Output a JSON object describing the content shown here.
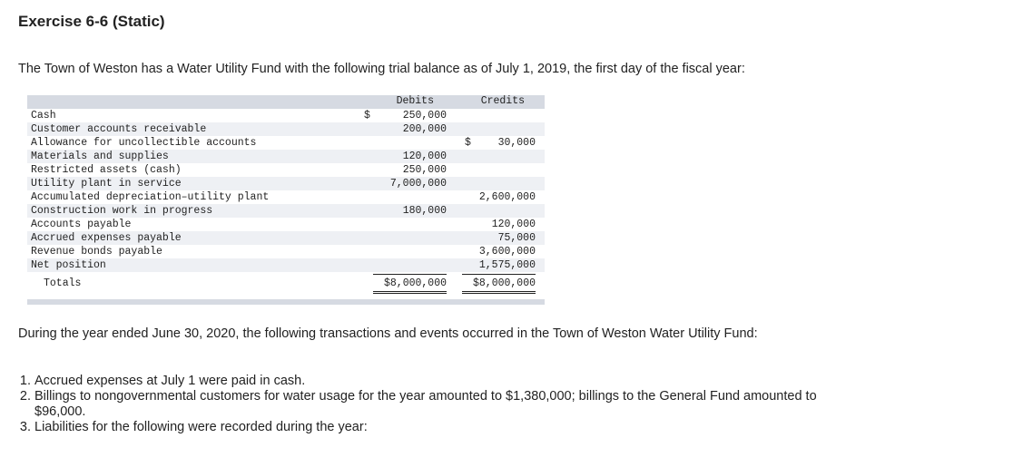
{
  "title": "Exercise 6-6 (Static)",
  "intro": "The Town of Weston has a Water Utility Fund with the following trial balance as of July 1, 2019, the first day of the fiscal year:",
  "table": {
    "headers": {
      "debits": "Debits",
      "credits": "Credits"
    },
    "rows": [
      {
        "label": "Cash",
        "debit": "250,000",
        "debit_dollar": "$",
        "credit": ""
      },
      {
        "label": "Customer accounts receivable",
        "debit": "200,000",
        "credit": ""
      },
      {
        "label": "Allowance for uncollectible accounts",
        "debit": "",
        "credit": "30,000",
        "credit_dollar": "$"
      },
      {
        "label": "Materials and supplies",
        "debit": "120,000",
        "credit": ""
      },
      {
        "label": "Restricted assets (cash)",
        "debit": "250,000",
        "credit": ""
      },
      {
        "label": "Utility plant in service",
        "debit": "7,000,000",
        "credit": ""
      },
      {
        "label": "Accumulated depreciation–utility plant",
        "debit": "",
        "credit": "2,600,000"
      },
      {
        "label": "Construction work in progress",
        "debit": "180,000",
        "credit": ""
      },
      {
        "label": "Accounts payable",
        "debit": "",
        "credit": "120,000"
      },
      {
        "label": "Accrued expenses payable",
        "debit": "",
        "credit": "75,000"
      },
      {
        "label": "Revenue bonds payable",
        "debit": "",
        "credit": "3,600,000"
      },
      {
        "label": "Net position",
        "debit": "",
        "credit": "1,575,000"
      }
    ],
    "totals": {
      "label": "Totals",
      "debit": "$8,000,000",
      "credit": "$8,000,000"
    }
  },
  "transactions_intro": "During the year ended June 30, 2020, the following transactions and events occurred in the Town of Weston Water Utility Fund:",
  "transactions": [
    "Accrued expenses at July 1 were paid in cash.",
    "Billings to nongovernmental customers for water usage for the year amounted to $1,380,000; billings to the General Fund amounted to $96,000.",
    "Liabilities for the following were recorded during the year:"
  ]
}
